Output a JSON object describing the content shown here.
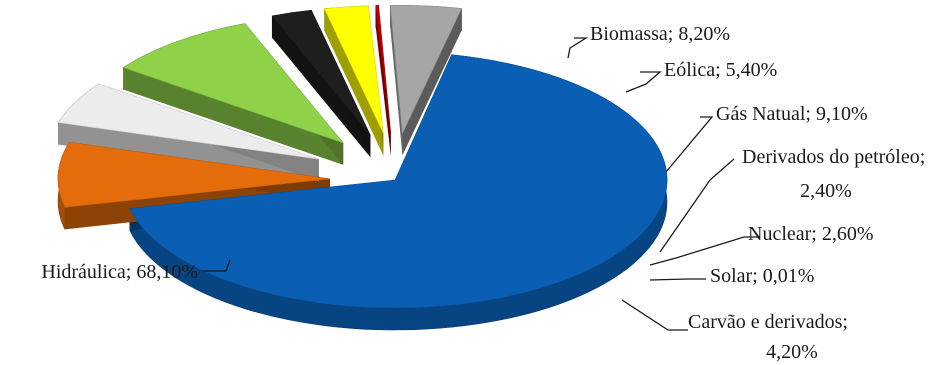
{
  "chart_data": {
    "type": "pie",
    "style": "3d-exploded",
    "title": "",
    "slices": [
      {
        "name": "Hidráulica",
        "value": 68.1,
        "label": "Hidráulica; 68,10%",
        "color": "#0a5fb4"
      },
      {
        "name": "Biomassa",
        "value": 8.2,
        "label": "Biomassa; 8,20%",
        "color": "#e46c0a"
      },
      {
        "name": "Eólica",
        "value": 5.4,
        "label": "Eólica; 5,40%",
        "color": "#ececec"
      },
      {
        "name": "Gás Natual",
        "value": 9.1,
        "label": "Gás Natual; 9,10%",
        "color": "#8fd24a"
      },
      {
        "name": "Derivados do petróleo",
        "value": 2.4,
        "label_lines": [
          "Derivados do petróleo;",
          "2,40%"
        ],
        "color": "#1e1e1e"
      },
      {
        "name": "Nuclear",
        "value": 2.6,
        "label": "Nuclear; 2,60%",
        "color": "#ffff00"
      },
      {
        "name": "Solar",
        "value": 0.01,
        "label": "Solar; 0,01%",
        "color": "#c00000"
      },
      {
        "name": "Carvão e derivados",
        "value": 4.2,
        "label_lines": [
          "Carvão e derivados;",
          "4,20%"
        ],
        "color": "#a6a6a6"
      }
    ],
    "legend": "none",
    "data_labels": "outside-with-leader-lines"
  }
}
